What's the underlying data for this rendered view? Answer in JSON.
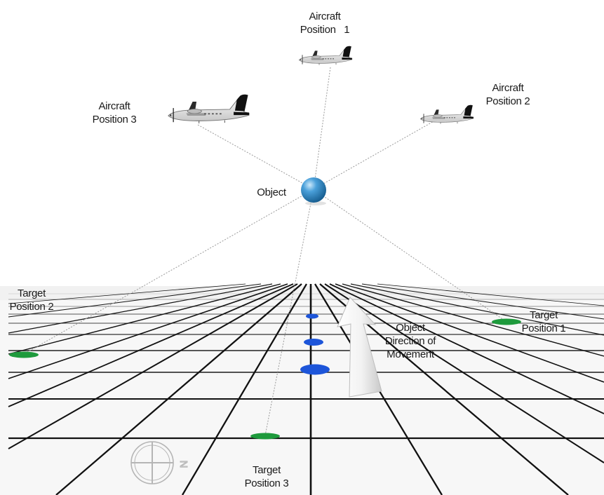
{
  "labels": {
    "aircraft1": {
      "line1": "Aircraft",
      "line2": "Position",
      "number": "1"
    },
    "aircraft2": {
      "line1": "Aircraft",
      "line2": "Position 2"
    },
    "aircraft3": {
      "line1": "Aircraft",
      "line2": "Position 3"
    },
    "object": "Object",
    "target1": {
      "line1": "Target",
      "line2": "Position 1"
    },
    "target2": {
      "line1": "Target",
      "line2": "Position 2"
    },
    "target3": {
      "line1": "Target",
      "line2": "Position 3"
    },
    "movement": {
      "line1": "Object",
      "line2": "Direction of",
      "line3": "Movement"
    }
  },
  "compass_letter": "N",
  "colors": {
    "target": "#1e9a3c",
    "object_track": "#1d55d9",
    "object_sphere": "#2f86c4",
    "grid": "#111111",
    "sight_line": "#9a9a9a"
  },
  "icons": [
    "aircraft-icon",
    "object-sphere-icon",
    "movement-arrow-icon",
    "compass-rose-icon"
  ]
}
